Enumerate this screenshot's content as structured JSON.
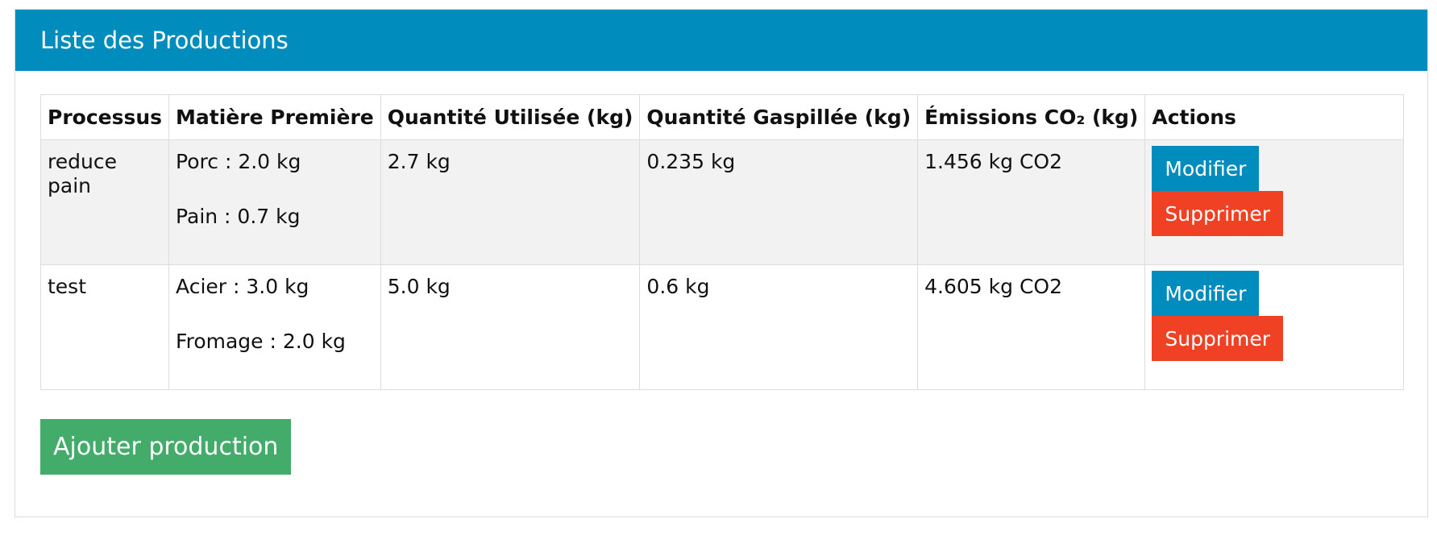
{
  "panel": {
    "title": "Liste des Productions"
  },
  "table": {
    "headers": {
      "processus": "Processus",
      "matiere": "Matière Première",
      "quantite_utilisee": "Quantité Utilisée (kg)",
      "quantite_gaspillee": "Quantité Gaspillée (kg)",
      "emissions": "Émissions CO₂ (kg)",
      "actions": "Actions"
    },
    "rows": [
      {
        "processus": "reduce pain",
        "materials": [
          "Porc : 2.0 kg",
          "Pain : 0.7 kg"
        ],
        "quantite_utilisee": "2.7 kg",
        "quantite_gaspillee": "0.235 kg",
        "emissions": "1.456 kg CO2",
        "edit_label": "Modifier",
        "delete_label": "Supprimer"
      },
      {
        "processus": "test",
        "materials": [
          "Acier : 3.0 kg",
          "Fromage : 2.0 kg"
        ],
        "quantite_utilisee": "5.0 kg",
        "quantite_gaspillee": "0.6 kg",
        "emissions": "4.605 kg CO2",
        "edit_label": "Modifier",
        "delete_label": "Supprimer"
      }
    ]
  },
  "add_button": {
    "label": "Ajouter production"
  },
  "colors": {
    "header_bg": "#008cbc",
    "edit_button": "#008cbc",
    "delete_button": "#f04124",
    "add_button": "#43ac6a"
  }
}
